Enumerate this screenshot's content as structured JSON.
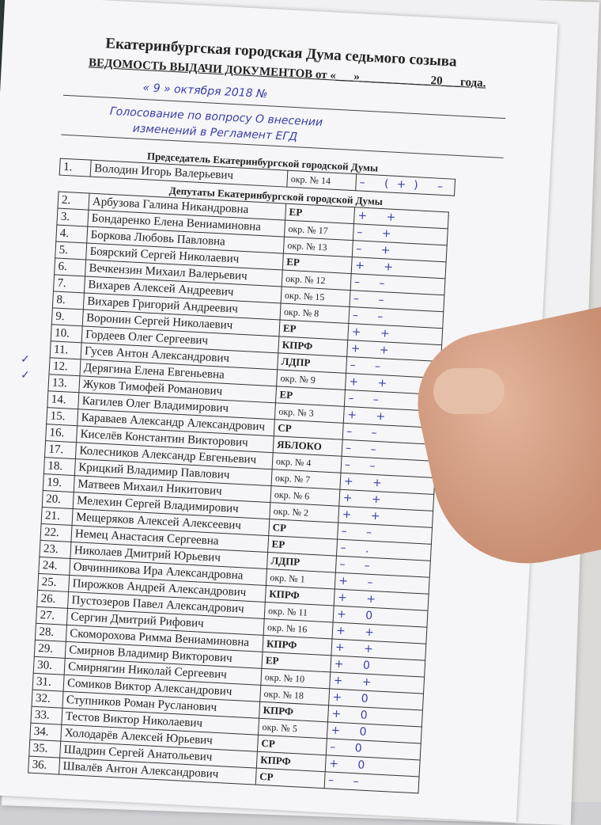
{
  "header": {
    "title": "Екатеринбургская городская Дума седьмого созыва",
    "form_title": "ВЕДОМОСТЬ ВЫДАЧИ ДОКУМЕНТОВ от «___»____________20___года.",
    "date_handwritten": "« 9 » октября 2018 №",
    "topic_line1": "Голосование по вопросу О внесении",
    "topic_line2": "изменений в Регламент ЕГД"
  },
  "chairman": {
    "section": "Председатель Екатеринбургской городской Думы",
    "num": "1.",
    "name": "Володин Игорь Валерьевич",
    "party": "окр. № 14",
    "vote": "– (+) –"
  },
  "deputies": {
    "section": "Депутаты Екатеринбургской городской Думы",
    "checkmark": "✓",
    "rows": [
      {
        "num": "2.",
        "name": "Арбузова Галина Никандровна",
        "party": "ЕР",
        "vote": "+ +"
      },
      {
        "num": "3.",
        "name": "Бондаренко Елена Вениаминовна",
        "party": "окр. № 17",
        "vote": "– +"
      },
      {
        "num": "4.",
        "name": "Боркова Любовь Павловна",
        "party": "окр. № 13",
        "vote": "– +"
      },
      {
        "num": "5.",
        "name": "Боярский Сергей Николаевич",
        "party": "ЕР",
        "vote": "+ +"
      },
      {
        "num": "6.",
        "name": "Вечкензин Михаил Валерьевич",
        "party": "окр. № 12",
        "vote": "– –"
      },
      {
        "num": "7.",
        "name": "Вихарев Алексей Андреевич",
        "party": "окр. № 15",
        "vote": "– –"
      },
      {
        "num": "8.",
        "name": "Вихарев Григорий Андреевич",
        "party": "окр. № 8",
        "vote": "– –"
      },
      {
        "num": "9.",
        "name": "Воронин Сергей Николаевич",
        "party": "ЕР",
        "vote": "+ +"
      },
      {
        "num": "10.",
        "name": "Гордеев Олег Сергеевич",
        "party": "КПРФ",
        "vote": "+ +"
      },
      {
        "num": "11.",
        "name": "Гусев Антон Александрович",
        "party": "ЛДПР",
        "vote": "– –"
      },
      {
        "num": "12.",
        "name": "Дерягина Елена Евгеньевна",
        "party": "окр. № 9",
        "vote": "+ +"
      },
      {
        "num": "13.",
        "name": "Жуков Тимофей Романович",
        "party": "ЕР",
        "vote": "– –"
      },
      {
        "num": "14.",
        "name": "Кагилев Олег Владимирович",
        "party": "окр. № 3",
        "vote": "+ +"
      },
      {
        "num": "15.",
        "name": "Караваев Александр Александрович",
        "party": "СР",
        "vote": "– –"
      },
      {
        "num": "16.",
        "name": "Киселёв Константин Викторович",
        "party": "ЯБЛОКО",
        "vote": "– –"
      },
      {
        "num": "17.",
        "name": "Колесников Александр Евгеньевич",
        "party": "окр. № 4",
        "vote": "– –"
      },
      {
        "num": "18.",
        "name": "Крицкий Владимир Павлович",
        "party": "окр. № 7",
        "vote": "+ +"
      },
      {
        "num": "19.",
        "name": "Матвеев Михаил Никитович",
        "party": "окр. № 6",
        "vote": "+ +"
      },
      {
        "num": "20.",
        "name": "Мелехин Сергей Владимирович",
        "party": "окр. № 2",
        "vote": "+ +"
      },
      {
        "num": "21.",
        "name": "Мещеряков Алексей Алексеевич",
        "party": "СР",
        "vote": "– –"
      },
      {
        "num": "22.",
        "name": "Немец Анастасия Сергеевна",
        "party": "ЕР",
        "vote": "– ."
      },
      {
        "num": "23.",
        "name": "Николаев Дмитрий Юрьевич",
        "party": "ЛДПР",
        "vote": "– –"
      },
      {
        "num": "24.",
        "name": "Овчинникова Ира Александровна",
        "party": "окр. № 1",
        "vote": "+ –"
      },
      {
        "num": "25.",
        "name": "Пирожков Андрей Александрович",
        "party": "КПРФ",
        "vote": "+ +"
      },
      {
        "num": "26.",
        "name": "Пустозеров Павел Александрович",
        "party": "окр. № 11",
        "vote": "+ 0"
      },
      {
        "num": "27.",
        "name": "Сергин Дмитрий Рифович",
        "party": "окр. № 16",
        "vote": "+ +"
      },
      {
        "num": "28.",
        "name": "Скоморохова Римма Вениаминовна",
        "party": "КПРФ",
        "vote": "+ +"
      },
      {
        "num": "29.",
        "name": "Смирнов Владимир Викторович",
        "party": "ЕР",
        "vote": "+ 0"
      },
      {
        "num": "30.",
        "name": "Смирнягин Николай Сергеевич",
        "party": "окр. № 10",
        "vote": "+ +"
      },
      {
        "num": "31.",
        "name": "Сомиков Виктор Александрович",
        "party": "окр. № 18",
        "vote": "+ 0"
      },
      {
        "num": "32.",
        "name": "Ступников Роман Русланович",
        "party": "КПРФ",
        "vote": "+ 0"
      },
      {
        "num": "33.",
        "name": "Тестов Виктор Николаевич",
        "party": "окр. № 5",
        "vote": "+ 0"
      },
      {
        "num": "34.",
        "name": "Холодарёв Алексей Юрьевич",
        "party": "СР",
        "vote": "– 0"
      },
      {
        "num": "35.",
        "name": "Шадрин Сергей Анатольевич",
        "party": "КПРФ",
        "vote": "+ 0"
      },
      {
        "num": "36.",
        "name": "Швалёв Антон Александрович",
        "party": "СР",
        "vote": "– –"
      }
    ]
  }
}
